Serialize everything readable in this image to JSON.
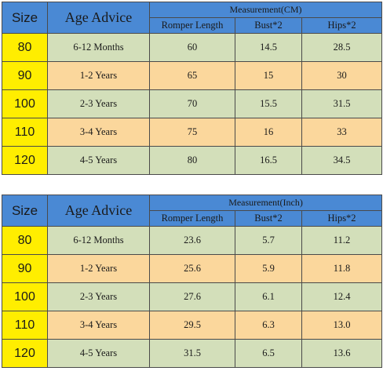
{
  "cm_table": {
    "header": {
      "size": "Size",
      "age_advice": "Age Advice",
      "measurement": "Measurement(CM)",
      "romper_length": "Romper Length",
      "bust": "Bust*2",
      "hips": "Hips*2"
    },
    "rows": [
      {
        "size": "80",
        "age": "6-12 Months",
        "romper": "60",
        "bust": "14.5",
        "hips": "28.5"
      },
      {
        "size": "90",
        "age": "1-2 Years",
        "romper": "65",
        "bust": "15",
        "hips": "30"
      },
      {
        "size": "100",
        "age": "2-3 Years",
        "romper": "70",
        "bust": "15.5",
        "hips": "31.5"
      },
      {
        "size": "110",
        "age": "3-4 Years",
        "romper": "75",
        "bust": "16",
        "hips": "33"
      },
      {
        "size": "120",
        "age": "4-5 Years",
        "romper": "80",
        "bust": "16.5",
        "hips": "34.5"
      }
    ]
  },
  "inch_table": {
    "header": {
      "size": "Size",
      "age_advice": "Age Advice",
      "measurement": "Measurement(Inch)",
      "romper_length": "Romper Length",
      "bust": "Bust*2",
      "hips": "Hips*2"
    },
    "rows": [
      {
        "size": "80",
        "age": "6-12 Months",
        "romper": "23.6",
        "bust": "5.7",
        "hips": "11.2"
      },
      {
        "size": "90",
        "age": "1-2 Years",
        "romper": "25.6",
        "bust": "5.9",
        "hips": "11.8"
      },
      {
        "size": "100",
        "age": "2-3 Years",
        "romper": "27.6",
        "bust": "6.1",
        "hips": "12.4"
      },
      {
        "size": "110",
        "age": "3-4 Years",
        "romper": "29.5",
        "bust": "6.3",
        "hips": "13.0"
      },
      {
        "size": "120",
        "age": "4-5 Years",
        "romper": "31.5",
        "bust": "6.5",
        "hips": "13.6"
      }
    ]
  },
  "colors": {
    "header_blue": "#4a89d4",
    "size_yellow": "#ffee00",
    "row_green": "#d3dfba",
    "row_orange": "#fbd79c",
    "border": "#4a4a4a"
  }
}
